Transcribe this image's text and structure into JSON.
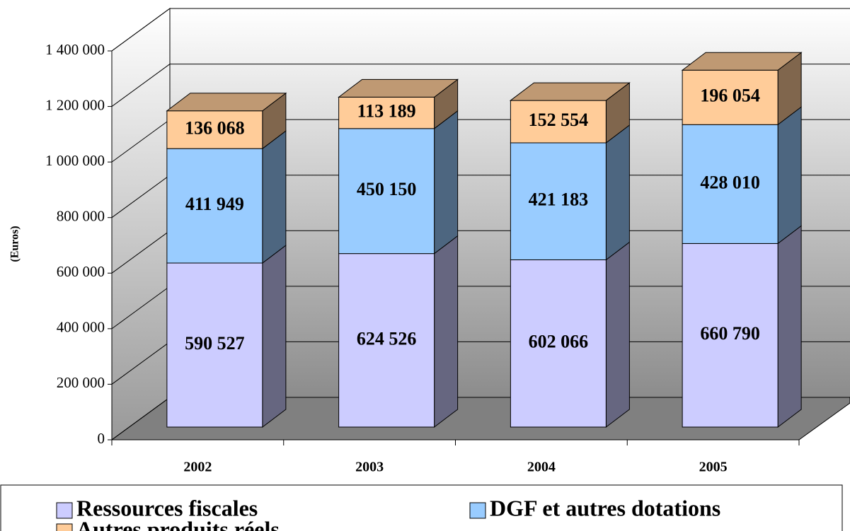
{
  "chart_data": {
    "type": "bar3d_stacked",
    "y_label": "(Euros)",
    "categories": [
      "2002",
      "2003",
      "2004",
      "2005"
    ],
    "series": [
      {
        "name": "Ressources fiscales",
        "color": "#ccccff",
        "values": [
          590527,
          624526,
          602066,
          660790
        ],
        "value_labels": [
          "590 527",
          "624 526",
          "602 066",
          "660 790"
        ]
      },
      {
        "name": "DGF et autres dotations",
        "color": "#99ccff",
        "values": [
          411949,
          450150,
          421183,
          428010
        ],
        "value_labels": [
          "411 949",
          "450 150",
          "421 183",
          "428 010"
        ]
      },
      {
        "name": "Autres produits réels",
        "color": "#ffcc99",
        "values": [
          136068,
          113189,
          152554,
          196054
        ],
        "value_labels": [
          "136 068",
          "113 189",
          "152 554",
          "196 054"
        ]
      }
    ],
    "ylim": [
      0,
      1400000
    ],
    "yticks": [
      0,
      {
        "value": 200000,
        "label": "200 000"
      },
      {
        "value": 400000,
        "label": "400 000"
      },
      {
        "value": 600000,
        "label": "600 000"
      },
      {
        "value": 800000,
        "label": "800 000"
      },
      {
        "value": 1000000,
        "label": "1 000 000"
      },
      {
        "value": 1200000,
        "label": "1 200 000"
      },
      {
        "value": 1400000,
        "label": "1 400 000"
      }
    ],
    "grid": true
  }
}
